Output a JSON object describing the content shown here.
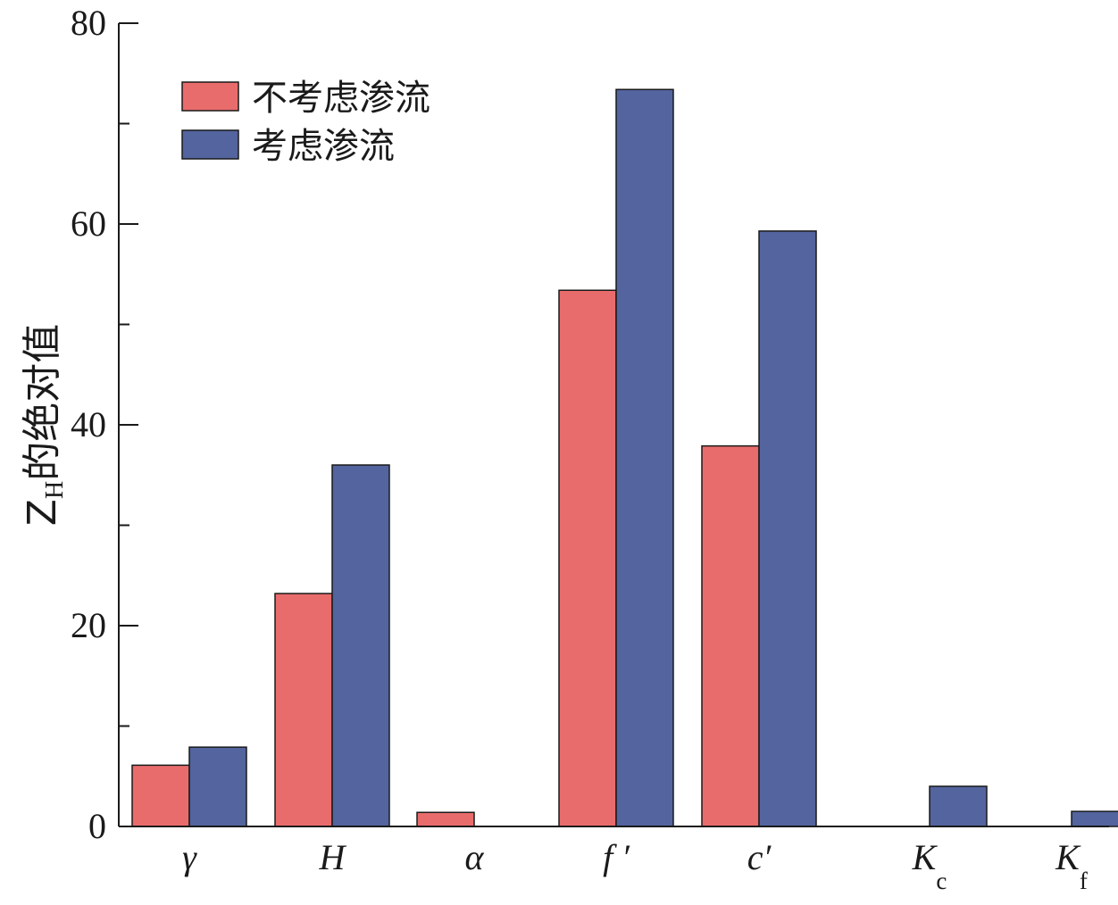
{
  "chart_data": {
    "type": "bar",
    "ylabel": "Z",
    "ylabel_sub": "H",
    "ylabel_rest": "的绝对值",
    "ylim": [
      0,
      80
    ],
    "yticks_major": [
      0,
      20,
      40,
      60,
      80
    ],
    "yticks_minor": [
      10,
      30,
      50,
      70
    ],
    "grid": false,
    "legend_position": "top-left",
    "categories": [
      {
        "main": "γ",
        "sub": ""
      },
      {
        "main": "H",
        "sub": ""
      },
      {
        "main": "α",
        "sub": ""
      },
      {
        "main": "f ′",
        "sub": ""
      },
      {
        "main": "c′",
        "sub": ""
      },
      {
        "main": "K",
        "sub": "c"
      },
      {
        "main": "K",
        "sub": "f"
      }
    ],
    "series": [
      {
        "name": "不考虑渗流",
        "color": "#e96c6c",
        "values": [
          6.1,
          23.2,
          1.4,
          53.4,
          37.9,
          0,
          0
        ]
      },
      {
        "name": "考虑渗流",
        "color": "#53649e",
        "values": [
          7.9,
          36.0,
          0,
          73.4,
          59.3,
          4.0,
          1.5
        ]
      }
    ]
  }
}
